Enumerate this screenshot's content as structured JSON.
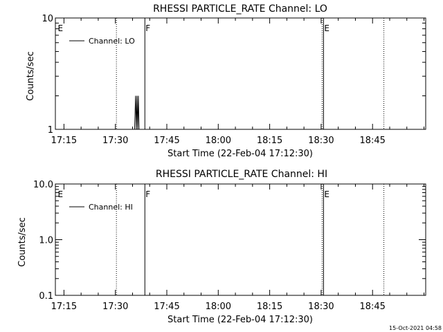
{
  "chart_data": [
    {
      "type": "line",
      "title": "RHESSI PARTICLE_RATE Channel: LO",
      "xlabel": "Start Time (22-Feb-04 17:12:30)",
      "ylabel": "Counts/sec",
      "y_scale": "log",
      "ylim": [
        1,
        10
      ],
      "xlim_minutes_after_17_00": [
        12.5,
        120.5
      ],
      "y_ticks": [
        {
          "value": 1,
          "label": "1"
        },
        {
          "value": 10,
          "label": "10"
        }
      ],
      "x_ticks": [
        {
          "minutes": 15,
          "label": "17:15"
        },
        {
          "minutes": 30,
          "label": "17:30"
        },
        {
          "minutes": 45,
          "label": "17:45"
        },
        {
          "minutes": 60,
          "label": "18:00"
        },
        {
          "minutes": 75,
          "label": "18:15"
        },
        {
          "minutes": 90,
          "label": "18:30"
        },
        {
          "minutes": 105,
          "label": "18:45"
        }
      ],
      "legend": {
        "placement": "top-left",
        "label": "Channel: LO"
      },
      "series": [
        {
          "name": "Channel: LO",
          "x": [
            35.6,
            35.9,
            36.1,
            36.3,
            36.5,
            36.7,
            36.9
          ],
          "y": [
            1,
            2,
            1,
            2,
            1,
            2,
            1
          ]
        }
      ],
      "markers": [
        {
          "minutes": 13.0,
          "label": "E",
          "style": "none"
        },
        {
          "minutes": 30.3,
          "label": "",
          "style": "dotted"
        },
        {
          "minutes": 38.6,
          "label": "F",
          "style": "solid"
        },
        {
          "minutes": 90.7,
          "label": "E",
          "style": "solid"
        },
        {
          "minutes": 90.3,
          "label": "",
          "style": "dotted"
        },
        {
          "minutes": 108.3,
          "label": "",
          "style": "dotted"
        }
      ]
    },
    {
      "type": "line",
      "title": "RHESSI PARTICLE_RATE Channel: HI",
      "xlabel": "Start Time (22-Feb-04 17:12:30)",
      "ylabel": "Counts/sec",
      "y_scale": "log",
      "ylim": [
        0.1,
        10
      ],
      "xlim_minutes_after_17_00": [
        12.5,
        120.5
      ],
      "y_ticks": [
        {
          "value": 0.1,
          "label": "0.1"
        },
        {
          "value": 1,
          "label": "1.0"
        },
        {
          "value": 10,
          "label": "10.0"
        }
      ],
      "x_ticks": [
        {
          "minutes": 15,
          "label": "17:15"
        },
        {
          "minutes": 30,
          "label": "17:30"
        },
        {
          "minutes": 45,
          "label": "17:45"
        },
        {
          "minutes": 60,
          "label": "18:00"
        },
        {
          "minutes": 75,
          "label": "18:15"
        },
        {
          "minutes": 90,
          "label": "18:30"
        },
        {
          "minutes": 105,
          "label": "18:45"
        }
      ],
      "legend": {
        "placement": "top-left",
        "label": "Channel: HI"
      },
      "series": [
        {
          "name": "Channel: HI",
          "x": [],
          "y": []
        }
      ],
      "markers": [
        {
          "minutes": 13.0,
          "label": "E",
          "style": "none"
        },
        {
          "minutes": 30.3,
          "label": "",
          "style": "dotted"
        },
        {
          "minutes": 38.6,
          "label": "F",
          "style": "solid"
        },
        {
          "minutes": 90.7,
          "label": "E",
          "style": "solid"
        },
        {
          "minutes": 90.3,
          "label": "",
          "style": "dotted"
        },
        {
          "minutes": 108.3,
          "label": "",
          "style": "dotted"
        }
      ]
    }
  ],
  "footer": {
    "timestamp": "15-Oct-2021 04:58"
  }
}
